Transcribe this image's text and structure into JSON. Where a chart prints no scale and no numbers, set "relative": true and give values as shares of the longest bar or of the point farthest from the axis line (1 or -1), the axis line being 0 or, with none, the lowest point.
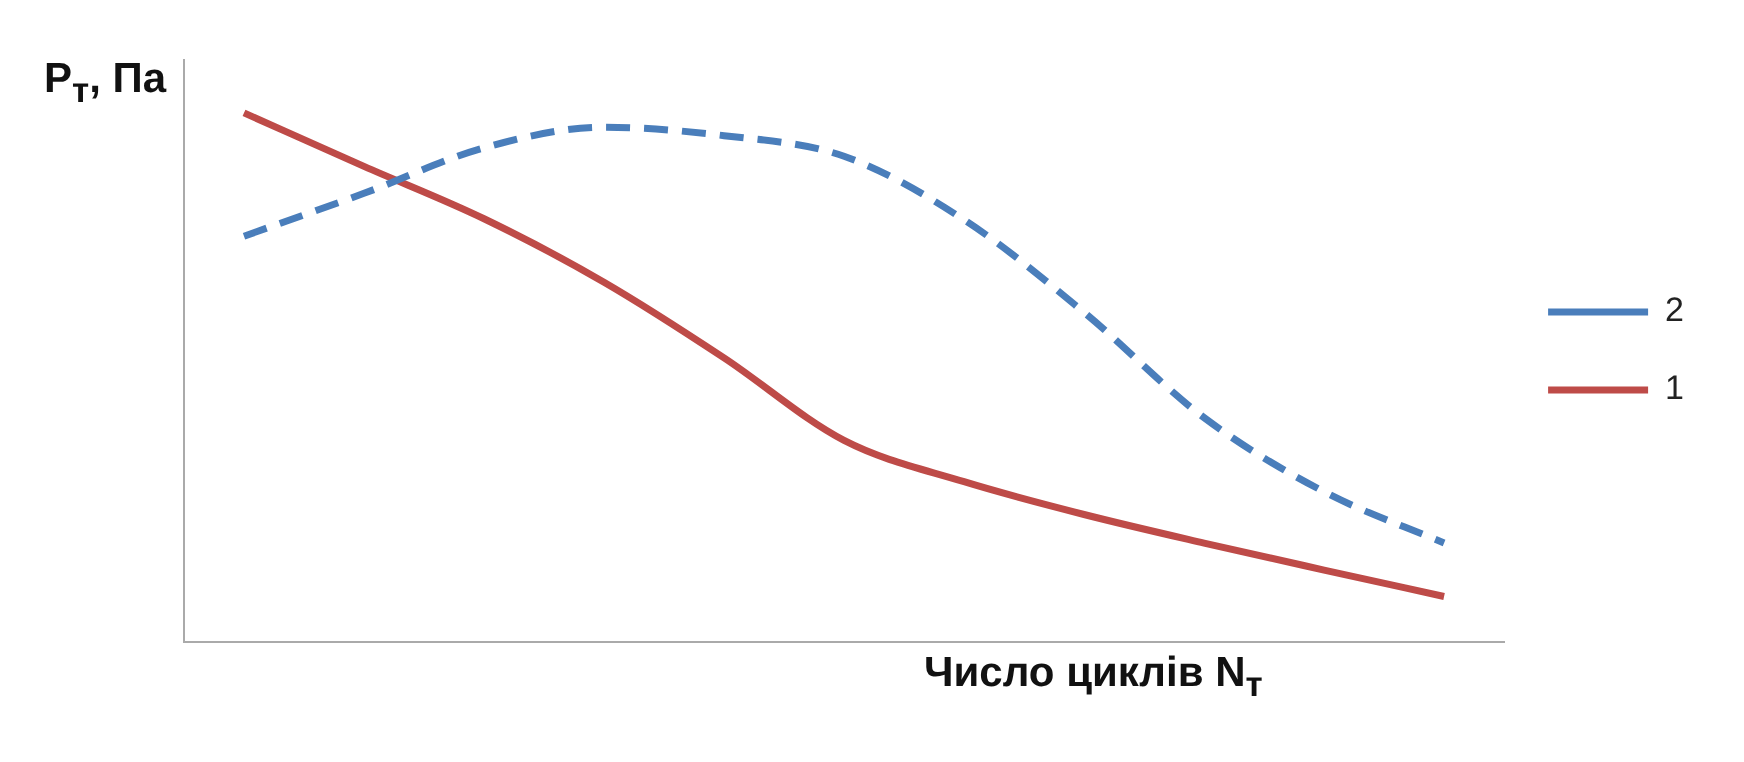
{
  "chart_data": {
    "type": "line",
    "relative": true,
    "ylabel": "P$_{т}$, Па",
    "xlabel": "Число циклів N$_{т}$",
    "categories": [
      null,
      null,
      null,
      null,
      null,
      null,
      null,
      null,
      null,
      null,
      null
    ],
    "series": [
      {
        "name": "2",
        "color": "#4a7ebb",
        "line_style": "dashed",
        "values": [
          0.767,
          0.848,
          0.934,
          0.973,
          0.957,
          0.918,
          0.798,
          0.623,
          0.424,
          0.284,
          0.187
        ]
      },
      {
        "name": "1",
        "color": "#be4b48",
        "line_style": "solid",
        "values": [
          1.0,
          0.899,
          0.8,
          0.68,
          0.537,
          0.381,
          0.303,
          0.241,
          0.187,
          0.136,
          0.086
        ]
      }
    ],
    "legend": "right",
    "marker": "none",
    "grid": false
  }
}
